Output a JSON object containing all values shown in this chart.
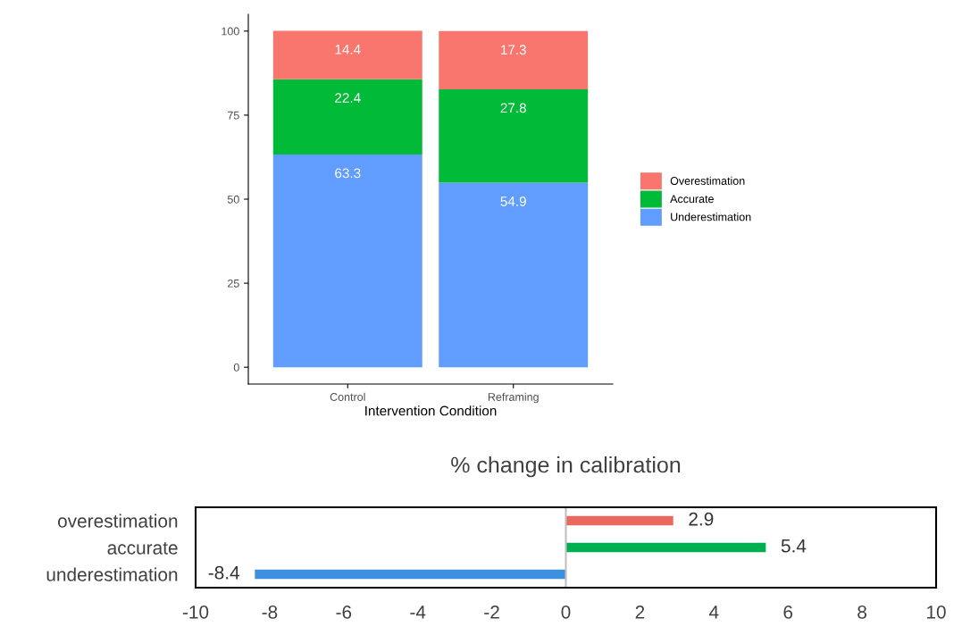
{
  "chart_data": [
    {
      "type": "bar",
      "stacked": true,
      "xlabel": "Intervention Condition",
      "categories": [
        "Control",
        "Reframing"
      ],
      "ylim": [
        -5,
        105
      ],
      "yticks": [
        0,
        25,
        50,
        75,
        100
      ],
      "data_labels": true,
      "legend": "right",
      "grid": false,
      "series": [
        {
          "name": "Underestimation",
          "color": "#619cff",
          "values": [
            63.3,
            54.9
          ]
        },
        {
          "name": "Accurate",
          "color": "#00ba38",
          "values": [
            22.4,
            27.8
          ]
        },
        {
          "name": "Overestimation",
          "color": "#f8766d",
          "values": [
            14.4,
            17.3
          ]
        }
      ]
    },
    {
      "type": "bar",
      "orientation": "horizontal",
      "title": "% change in calibration",
      "categories": [
        "overestimation",
        "accurate",
        "underestimation"
      ],
      "values": [
        2.9,
        5.4,
        -8.4
      ],
      "colors": [
        "#e9695d",
        "#00b050",
        "#3d8fe0"
      ],
      "xlim": [
        -10,
        10
      ],
      "xticks": [
        -10,
        -8,
        -6,
        -4,
        -2,
        0,
        2,
        4,
        6,
        8,
        10
      ],
      "data_labels": true,
      "grid": false,
      "legend": false,
      "ref_lines": [
        {
          "axis": "x",
          "value": 0,
          "color": "#bfbfbf"
        }
      ]
    }
  ]
}
